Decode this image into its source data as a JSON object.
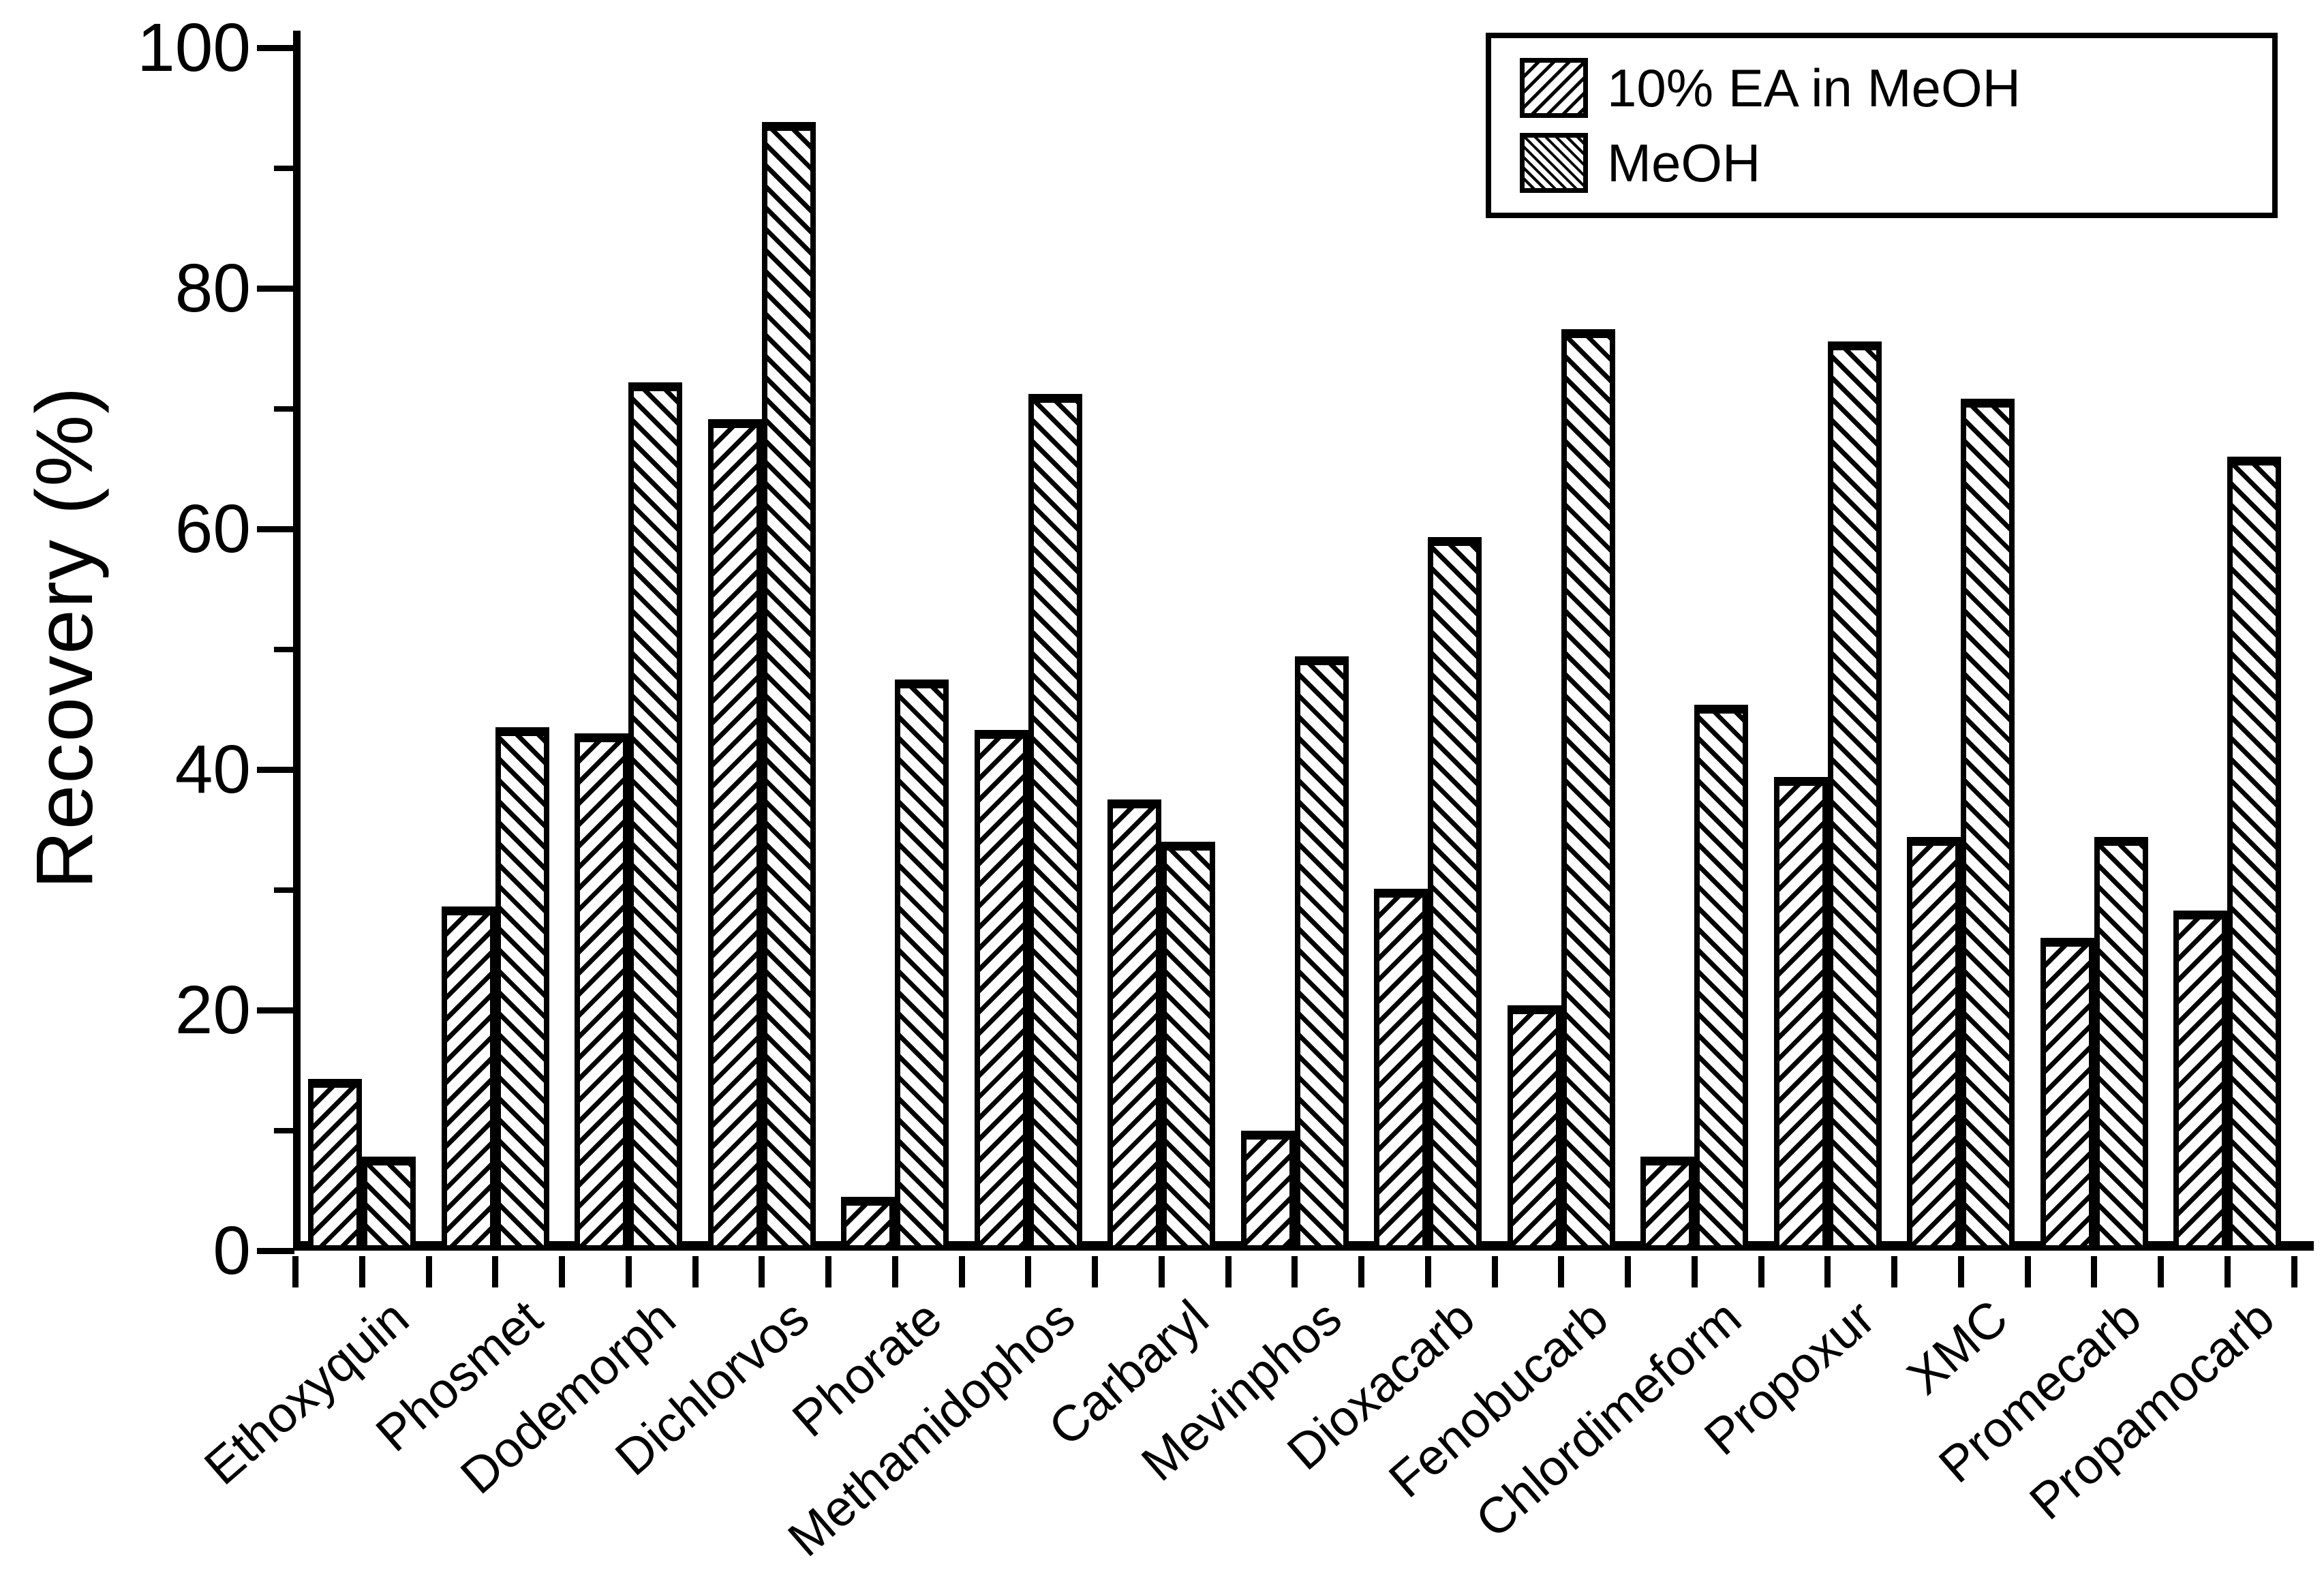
{
  "chart_data": {
    "type": "bar",
    "title": "",
    "xlabel": "",
    "ylabel": "Recovery (%)",
    "ylim": [
      0,
      100
    ],
    "y_major_ticks": [
      0,
      20,
      40,
      60,
      80,
      100
    ],
    "y_minor_ticks": [
      10,
      30,
      50,
      70,
      90
    ],
    "grid": false,
    "legend_position": "top-right",
    "bar_outline_color": "#000000",
    "background_color": "#ffffff",
    "categories": [
      "Ethoxyquin",
      "Phosmet",
      "Dodemorph",
      "Dichlorvos",
      "Phorate",
      "Methamidophos",
      "Carbaryl",
      "Mevinphos",
      "Dioxacarb",
      "Fenobucarb",
      "Chlordimeform",
      "Propoxur",
      "XMC",
      "Promecarb",
      "Propamocarb"
    ],
    "series": [
      {
        "name": "10% EA in MeOH",
        "hatch": "forward-diagonal",
        "values": [
          14.3,
          28.6,
          43.0,
          69.1,
          4.5,
          43.3,
          37.5,
          10.0,
          30.1,
          20.4,
          7.8,
          39.4,
          34.4,
          26.0,
          28.3
        ]
      },
      {
        "name": "MeOH",
        "hatch": "backward-diagonal",
        "values": [
          7.8,
          43.5,
          72.2,
          93.8,
          47.5,
          71.2,
          34.0,
          49.4,
          59.3,
          76.6,
          45.4,
          75.6,
          70.8,
          34.4,
          66.0
        ]
      }
    ]
  },
  "legend": {
    "items": [
      {
        "label": "10% EA in MeOH",
        "swatch": "forward-diagonal-hatch"
      },
      {
        "label": "MeOH",
        "swatch": "backward-diagonal-hatch"
      }
    ]
  }
}
